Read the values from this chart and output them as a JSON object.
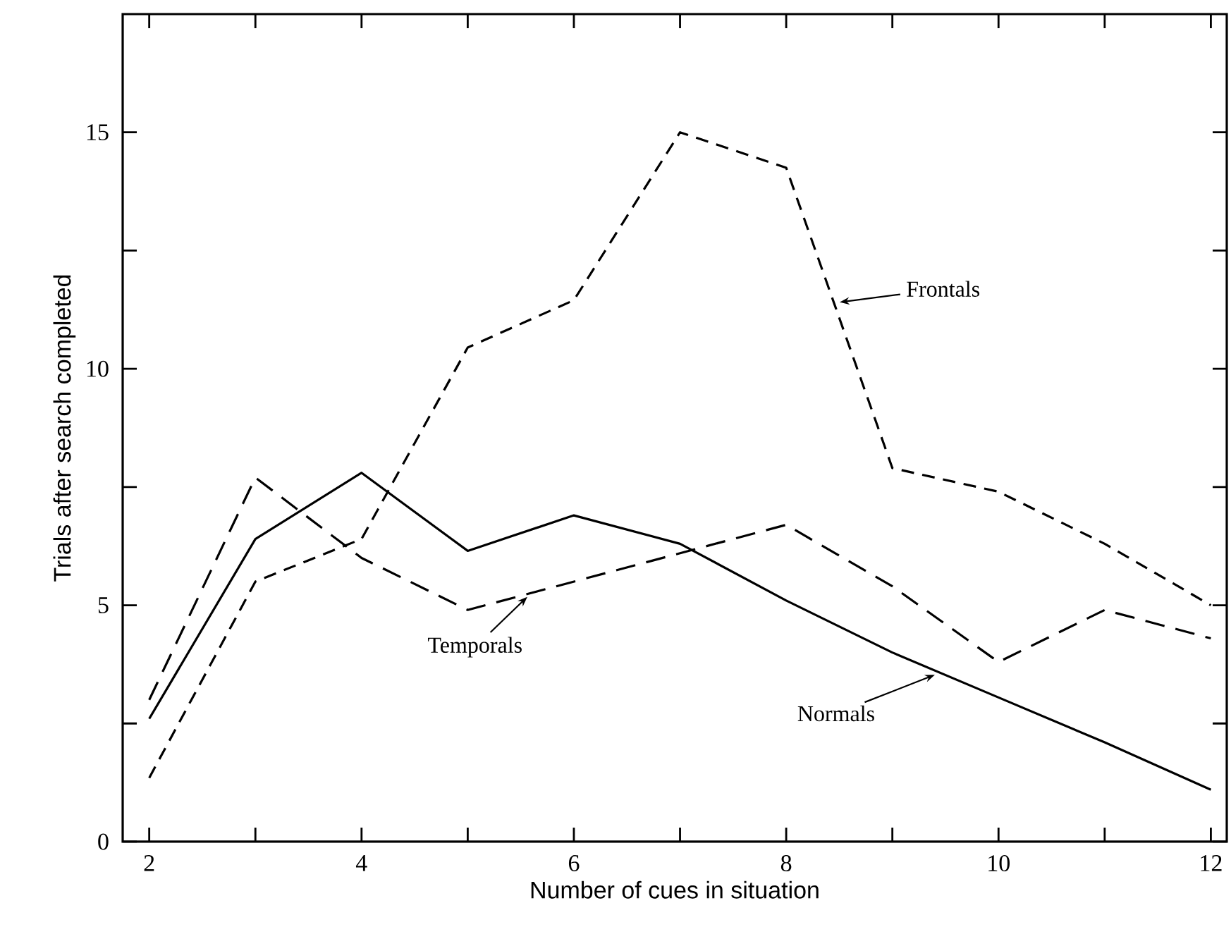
{
  "chart_data": {
    "type": "line",
    "xlabel": "Number of cues in situation",
    "ylabel": "Trials after search completed",
    "x": [
      2,
      3,
      4,
      5,
      6,
      7,
      8,
      9,
      10,
      11,
      12
    ],
    "series": [
      {
        "color": "#000000",
        "line_style": "solid",
        "values": [
          2.6,
          6.4,
          7.8,
          6.15,
          6.9,
          6.3,
          5.1,
          4.0,
          3.05,
          2.1,
          1.1
        ]
      },
      {
        "color": "#000000",
        "line_style": "dashed",
        "values": [
          3.0,
          7.7,
          6.0,
          4.9,
          5.5,
          6.1,
          6.7,
          5.4,
          3.8,
          4.9,
          4.3
        ]
      },
      {
        "color": "#000000",
        "line_style": "dashed",
        "values": [
          1.35,
          5.5,
          6.4,
          10.45,
          11.45,
          15.0,
          14.25,
          7.9,
          7.4,
          6.3,
          5.0
        ]
      }
    ],
    "xlim": [
      1.75,
      12.15
    ],
    "ylim": [
      0,
      17.5
    ],
    "xticks": [
      2,
      {
        "value": 3,
        "label": null
      },
      4,
      {
        "value": 5,
        "label": null
      },
      6,
      {
        "value": 7,
        "label": null
      },
      8,
      {
        "value": 9,
        "label": null
      },
      10,
      {
        "value": 11,
        "label": null
      },
      12
    ],
    "yticks": [
      0,
      {
        "value": 2.5,
        "label": null
      },
      5,
      {
        "value": 7.5,
        "label": null
      },
      10,
      {
        "value": 12.5,
        "label": null
      },
      15
    ],
    "annotations": [
      "Frontals",
      "Temporals",
      "Normals"
    ],
    "grid": false
  }
}
